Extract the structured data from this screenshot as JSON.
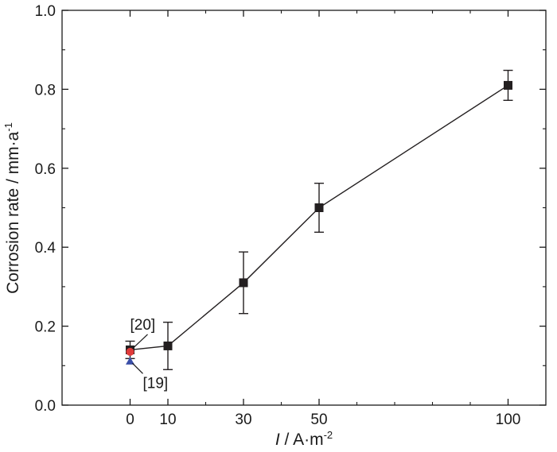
{
  "chart_data": {
    "type": "line",
    "title": "",
    "xlabel": {
      "italic": "I",
      "rest": " / A·m",
      "sup": "-2"
    },
    "ylabel": {
      "text": "Corrosion rate / mm·a",
      "sup": "-1"
    },
    "xlim": [
      -18,
      110
    ],
    "ylim": [
      0,
      1.0
    ],
    "xticks": [
      0,
      10,
      30,
      50,
      100
    ],
    "xtick_labels": [
      "0",
      "10",
      "30",
      "50",
      "100"
    ],
    "yticks": [
      0.0,
      0.2,
      0.4,
      0.6,
      0.8,
      1.0
    ],
    "ytick_labels": [
      "0.0",
      "0.2",
      "0.4",
      "0.6",
      "0.8",
      "1.0"
    ],
    "grid": false,
    "series": [
      {
        "marker": "square",
        "color": "#231f20",
        "x": [
          0,
          10,
          30,
          50,
          100
        ],
        "y": [
          0.14,
          0.15,
          0.31,
          0.5,
          0.81
        ],
        "err": [
          0.022,
          0.06,
          0.078,
          0.062,
          0.038
        ]
      }
    ],
    "reference_points": [
      {
        "label": "[20]",
        "marker": "circle",
        "color": "#e03a3a",
        "x": 0,
        "y": 0.135
      },
      {
        "label": "[19]",
        "marker": "triangle",
        "color": "#3b4fa8",
        "x": 0,
        "y": 0.112
      }
    ]
  }
}
